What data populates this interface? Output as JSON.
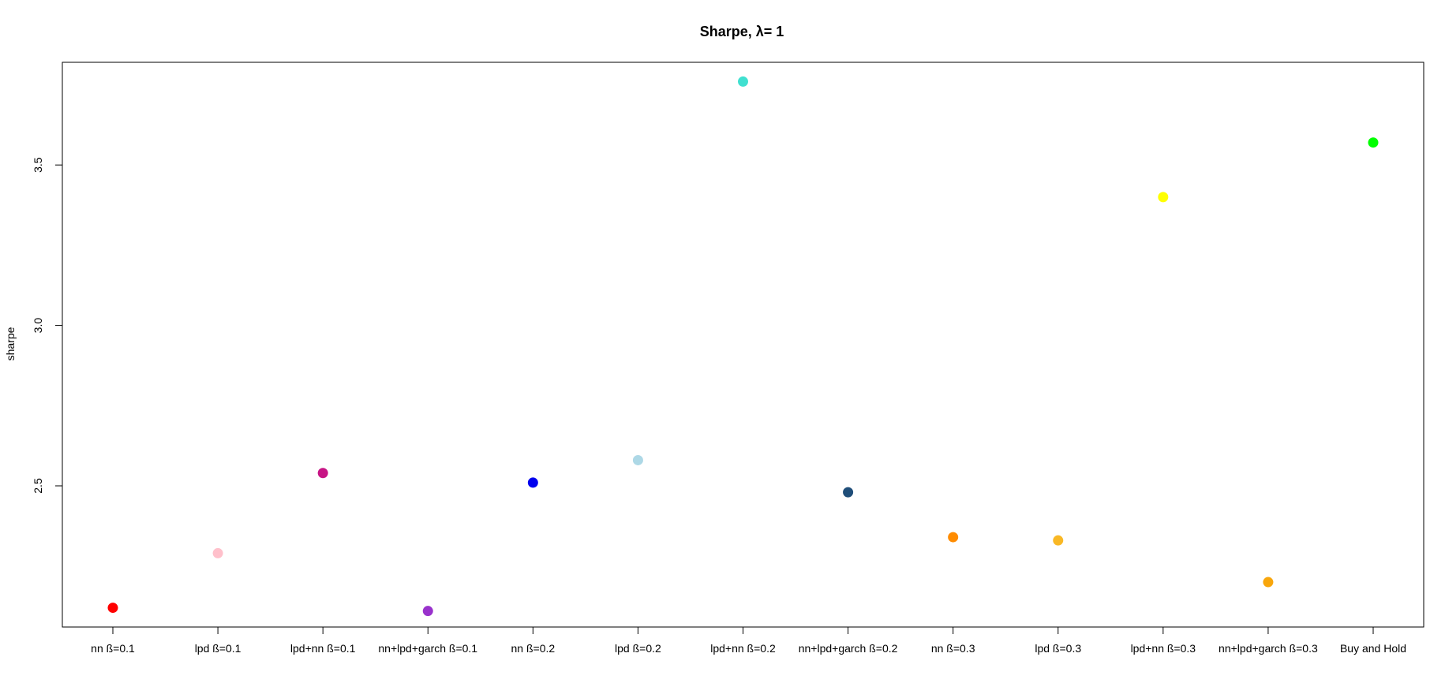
{
  "chart_data": {
    "type": "scatter",
    "title": "Sharpe, λ= 1",
    "xlabel": "",
    "ylabel": "sharpe",
    "categories": [
      "nn ß=0.1",
      "lpd ß=0.1",
      "lpd+nn ß=0.1",
      "nn+lpd+garch ß=0.1",
      "nn ß=0.2",
      "lpd ß=0.2",
      "lpd+nn ß=0.2",
      "nn+lpd+garch ß=0.2",
      "nn ß=0.3",
      "lpd ß=0.3",
      "lpd+nn ß=0.3",
      "nn+lpd+garch ß=0.3",
      "Buy and Hold"
    ],
    "values": [
      2.12,
      2.29,
      2.54,
      2.11,
      2.51,
      2.58,
      3.76,
      2.48,
      2.34,
      2.33,
      3.4,
      2.2,
      3.57
    ],
    "colors": [
      "#ff0000",
      "#ffc0cb",
      "#c71585",
      "#9932cc",
      "#0000ee",
      "#add8e6",
      "#40e0d0",
      "#1f4e79",
      "#ff8c00",
      "#f9b825",
      "#ffff00",
      "#f8a60c",
      "#00ff00"
    ],
    "yticks": [
      2.5,
      3.0,
      3.5
    ],
    "ytick_labels": [
      "2.5",
      "3.0",
      "3.5"
    ],
    "ylim": [
      2.06,
      3.82
    ],
    "grid": false,
    "legend": "none"
  }
}
